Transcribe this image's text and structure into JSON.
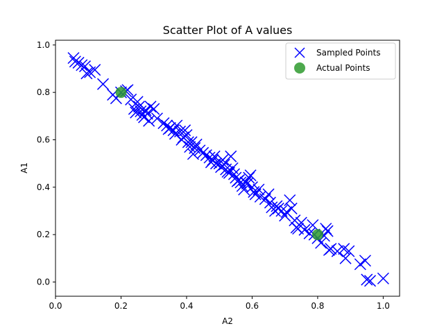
{
  "chart_data": {
    "type": "scatter",
    "title": "Scatter Plot of A values",
    "xlabel": "A2",
    "ylabel": "A1",
    "xlim": [
      0.0,
      1.05
    ],
    "ylim": [
      -0.06,
      1.02
    ],
    "xticks": [
      "0.0",
      "0.2",
      "0.4",
      "0.6",
      "0.8",
      "1.0"
    ],
    "yticks": [
      "0.0",
      "0.2",
      "0.4",
      "0.6",
      "0.8",
      "1.0"
    ],
    "grid": false,
    "legend_position": "top-right",
    "series": [
      {
        "name": "Sampled Points",
        "marker": "x",
        "color": "#0000ff",
        "points": [
          [
            0.055,
            0.945
          ],
          [
            0.06,
            0.93
          ],
          [
            0.07,
            0.925
          ],
          [
            0.08,
            0.915
          ],
          [
            0.09,
            0.91
          ],
          [
            0.095,
            0.88
          ],
          [
            0.105,
            0.885
          ],
          [
            0.12,
            0.895
          ],
          [
            0.145,
            0.835
          ],
          [
            0.175,
            0.79
          ],
          [
            0.185,
            0.775
          ],
          [
            0.2,
            0.8
          ],
          [
            0.215,
            0.805
          ],
          [
            0.22,
            0.81
          ],
          [
            0.23,
            0.77
          ],
          [
            0.24,
            0.73
          ],
          [
            0.245,
            0.715
          ],
          [
            0.25,
            0.76
          ],
          [
            0.255,
            0.74
          ],
          [
            0.26,
            0.72
          ],
          [
            0.265,
            0.705
          ],
          [
            0.27,
            0.695
          ],
          [
            0.275,
            0.725
          ],
          [
            0.28,
            0.71
          ],
          [
            0.285,
            0.68
          ],
          [
            0.29,
            0.74
          ],
          [
            0.3,
            0.73
          ],
          [
            0.31,
            0.69
          ],
          [
            0.33,
            0.67
          ],
          [
            0.34,
            0.66
          ],
          [
            0.345,
            0.645
          ],
          [
            0.35,
            0.65
          ],
          [
            0.36,
            0.64
          ],
          [
            0.365,
            0.625
          ],
          [
            0.37,
            0.66
          ],
          [
            0.38,
            0.635
          ],
          [
            0.385,
            0.6
          ],
          [
            0.39,
            0.61
          ],
          [
            0.395,
            0.64
          ],
          [
            0.4,
            0.62
          ],
          [
            0.405,
            0.59
          ],
          [
            0.41,
            0.57
          ],
          [
            0.415,
            0.59
          ],
          [
            0.42,
            0.54
          ],
          [
            0.425,
            0.565
          ],
          [
            0.43,
            0.58
          ],
          [
            0.44,
            0.555
          ],
          [
            0.45,
            0.545
          ],
          [
            0.46,
            0.535
          ],
          [
            0.47,
            0.525
          ],
          [
            0.475,
            0.505
          ],
          [
            0.48,
            0.515
          ],
          [
            0.485,
            0.53
          ],
          [
            0.49,
            0.5
          ],
          [
            0.5,
            0.5
          ],
          [
            0.505,
            0.485
          ],
          [
            0.51,
            0.515
          ],
          [
            0.515,
            0.495
          ],
          [
            0.52,
            0.475
          ],
          [
            0.525,
            0.465
          ],
          [
            0.53,
            0.46
          ],
          [
            0.535,
            0.53
          ],
          [
            0.54,
            0.48
          ],
          [
            0.545,
            0.455
          ],
          [
            0.55,
            0.44
          ],
          [
            0.555,
            0.425
          ],
          [
            0.56,
            0.43
          ],
          [
            0.565,
            0.42
          ],
          [
            0.57,
            0.405
          ],
          [
            0.575,
            0.39
          ],
          [
            0.58,
            0.42
          ],
          [
            0.585,
            0.415
          ],
          [
            0.59,
            0.44
          ],
          [
            0.595,
            0.45
          ],
          [
            0.6,
            0.4
          ],
          [
            0.605,
            0.38
          ],
          [
            0.61,
            0.37
          ],
          [
            0.62,
            0.39
          ],
          [
            0.625,
            0.36
          ],
          [
            0.64,
            0.35
          ],
          [
            0.65,
            0.37
          ],
          [
            0.655,
            0.335
          ],
          [
            0.66,
            0.315
          ],
          [
            0.67,
            0.3
          ],
          [
            0.675,
            0.32
          ],
          [
            0.68,
            0.31
          ],
          [
            0.69,
            0.3
          ],
          [
            0.7,
            0.28
          ],
          [
            0.705,
            0.295
          ],
          [
            0.715,
            0.345
          ],
          [
            0.72,
            0.31
          ],
          [
            0.73,
            0.26
          ],
          [
            0.735,
            0.23
          ],
          [
            0.74,
            0.225
          ],
          [
            0.75,
            0.25
          ],
          [
            0.76,
            0.22
          ],
          [
            0.775,
            0.205
          ],
          [
            0.785,
            0.24
          ],
          [
            0.79,
            0.2
          ],
          [
            0.8,
            0.185
          ],
          [
            0.81,
            0.165
          ],
          [
            0.82,
            0.195
          ],
          [
            0.825,
            0.225
          ],
          [
            0.83,
            0.215
          ],
          [
            0.835,
            0.135
          ],
          [
            0.84,
            0.14
          ],
          [
            0.86,
            0.13
          ],
          [
            0.88,
            0.14
          ],
          [
            0.885,
            0.1
          ],
          [
            0.895,
            0.13
          ],
          [
            0.93,
            0.075
          ],
          [
            0.945,
            0.09
          ],
          [
            0.95,
            0.01
          ],
          [
            0.96,
            0.005
          ],
          [
            1.0,
            0.015
          ]
        ]
      },
      {
        "name": "Actual Points",
        "marker": "o",
        "color": "#2e9a2e",
        "points": [
          [
            0.2,
            0.8
          ],
          [
            0.8,
            0.2
          ]
        ]
      }
    ]
  }
}
